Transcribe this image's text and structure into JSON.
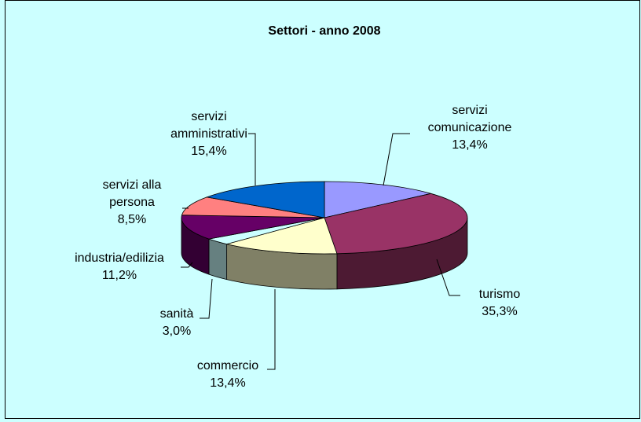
{
  "chart_data": {
    "type": "pie3d",
    "title": "Settori - anno 2008",
    "categories": [
      "servizi\ncomunicazione",
      "turismo",
      "commercio",
      "sanità",
      "industria/edilizia",
      "servizi alla\npersona",
      "servizi\namministrativi"
    ],
    "values": [
      13.4,
      35.3,
      13.4,
      3.0,
      11.2,
      8.5,
      15.4
    ],
    "value_labels": [
      "13,4%",
      "35,3%",
      "13,4%",
      "3,0%",
      "11,2%",
      "8,5%",
      "15,4%"
    ],
    "colors": [
      "#9999ff",
      "#993366",
      "#ffffcc",
      "#ccffff",
      "#660066",
      "#ff8080",
      "#0066cc"
    ]
  }
}
